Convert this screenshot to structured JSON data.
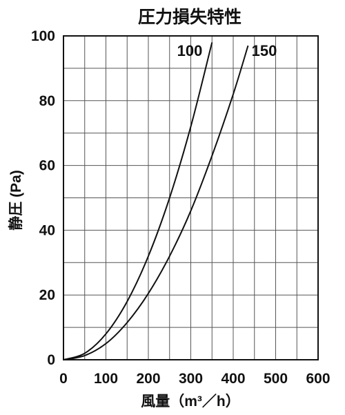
{
  "chart_data": {
    "type": "line",
    "title": "圧力損失特性",
    "xlabel": "風量（m³／h）",
    "ylabel": "静圧 (Pa)",
    "xlim": [
      0,
      600
    ],
    "ylim": [
      0,
      100
    ],
    "xticks": [
      "0",
      "100",
      "200",
      "300",
      "400",
      "500",
      "600"
    ],
    "yticks": [
      "0",
      "20",
      "40",
      "60",
      "80",
      "100"
    ],
    "x_minor_step": 50,
    "y_minor_step": 10,
    "grid": true,
    "series": [
      {
        "name": "100",
        "x": [
          0,
          50,
          100,
          150,
          200,
          250,
          300,
          350
        ],
        "y": [
          0,
          2,
          8,
          18,
          32,
          50,
          72,
          98
        ]
      },
      {
        "name": "150",
        "x": [
          0,
          50,
          100,
          150,
          200,
          250,
          300,
          350,
          400,
          435
        ],
        "y": [
          0,
          1.3,
          5,
          11.5,
          20.5,
          32,
          46,
          63,
          82,
          97
        ]
      }
    ]
  }
}
